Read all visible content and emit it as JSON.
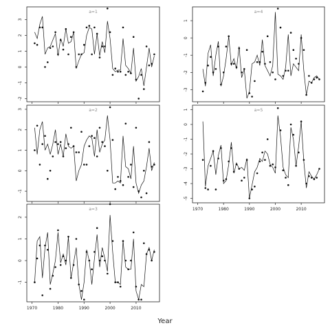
{
  "chart_data": {
    "type": "line",
    "xlabel": "Year",
    "ylabel": "",
    "xlim": [
      1968,
      2019
    ],
    "x_ticks": [
      1970,
      1980,
      1990,
      2000,
      2010
    ],
    "panels": [
      {
        "title": "a=1",
        "ylim": [
          -2.2,
          3.8
        ],
        "y_ticks": [
          -2,
          -1,
          0,
          1,
          2,
          3
        ],
        "series": [
          {
            "years": [
              1971,
              1972,
              1973,
              1974,
              1975,
              1976,
              1977,
              1978,
              1979,
              1980,
              1981,
              1982,
              1983,
              1984,
              1985,
              1986,
              1987,
              1988,
              1989,
              1990,
              1991,
              1992,
              1993,
              1994,
              1995,
              1996,
              1997,
              1998,
              1999,
              2000,
              2001,
              2002,
              2003,
              2004,
              2005,
              2006,
              2007,
              2008,
              2009,
              2010,
              2011,
              2012,
              2013,
              2014,
              2015,
              2016,
              2017
            ],
            "line": [
              2.2,
              1.8,
              2.7,
              3.2,
              0.8,
              1.2,
              1.3,
              1.7,
              2.1,
              0.7,
              1.8,
              1.3,
              2.4,
              1.5,
              1.6,
              2.2,
              -0.1,
              0.4,
              0.8,
              0.9,
              2.0,
              2.5,
              2.4,
              0.8,
              2.1,
              0.7,
              1.6,
              0.9,
              2.9,
              1.8,
              -0.1,
              -0.3,
              -0.2,
              -0.2,
              1.8,
              0.1,
              -0.1,
              -0.4,
              1.2,
              -0.9,
              -0.6,
              -0.1,
              -1.2,
              0.0,
              1.2,
              0.0,
              0.7
            ],
            "points": [
              1.5,
              1.4,
              2.5,
              2.5,
              0.0,
              0.3,
              1.2,
              1.3,
              2.2,
              0.8,
              1.7,
              1.1,
              2.4,
              0.8,
              1.9,
              2.2,
              0.0,
              0.8,
              0.8,
              1.4,
              2.5,
              2.6,
              0.8,
              2.5,
              2.1,
              0.6,
              1.3,
              1.3,
              3.7,
              2.2,
              -0.5,
              -0.1,
              -0.3,
              -0.3,
              2.5,
              -0.5,
              -0.3,
              -0.4,
              1.9,
              -0.8,
              -2.0,
              -0.5,
              -1.4,
              1.3,
              0.1,
              0.2,
              0.8
            ]
          }
        ]
      },
      {
        "title": "a=2",
        "ylim": [
          -1.5,
          3.2
        ],
        "y_ticks": [
          -1,
          0,
          1,
          2,
          3
        ],
        "series": [
          {
            "years": [
              1971,
              1972,
              1973,
              1974,
              1975,
              1976,
              1977,
              1978,
              1979,
              1980,
              1981,
              1982,
              1983,
              1984,
              1985,
              1986,
              1987,
              1988,
              1989,
              1990,
              1991,
              1992,
              1993,
              1994,
              1995,
              1996,
              1997,
              1998,
              1999,
              2000,
              2001,
              2002,
              2003,
              2004,
              2005,
              2006,
              2007,
              2008,
              2009,
              2010,
              2011,
              2012,
              2013,
              2014,
              2015,
              2016,
              2017
            ],
            "line": [
              2.1,
              0.8,
              2.0,
              2.4,
              1.0,
              1.3,
              0.8,
              1.3,
              2.0,
              0.8,
              1.3,
              0.7,
              1.8,
              1.2,
              1.1,
              1.2,
              -0.5,
              0.0,
              0.3,
              1.2,
              1.5,
              1.7,
              1.6,
              0.7,
              2.0,
              0.9,
              1.3,
              1.5,
              2.7,
              1.5,
              -0.6,
              -0.6,
              -0.5,
              -0.6,
              1.7,
              0.2,
              0.1,
              -0.4,
              1.2,
              -0.6,
              -1.1,
              -0.7,
              -0.5,
              0.2,
              1.1,
              0.0,
              0.4
            ],
            "points": [
              1.0,
              2.2,
              0.3,
              1.3,
              1.7,
              -0.4,
              0.0,
              0.7,
              1.4,
              1.3,
              1.4,
              0.7,
              1.1,
              1.3,
              2.1,
              1.2,
              0.9,
              0.9,
              1.9,
              0.3,
              0.3,
              1.2,
              1.7,
              1.6,
              0.7,
              2.1,
              1.4,
              1.2,
              0.0,
              3.1,
              1.5,
              -0.9,
              -0.3,
              -0.5,
              -0.7,
              2.3,
              -0.3,
              0.3,
              -0.8,
              2.1,
              -1.0,
              -1.3,
              0.0,
              -1.1,
              1.4,
              0.2,
              0.3
            ]
          }
        ]
      },
      {
        "title": "a=3",
        "ylim": [
          -1.9,
          2.6
        ],
        "y_ticks": [
          -1,
          0,
          1,
          2
        ],
        "series": [
          {
            "years": [
              1971,
              1972,
              1973,
              1974,
              1975,
              1976,
              1977,
              1978,
              1979,
              1980,
              1981,
              1982,
              1983,
              1984,
              1985,
              1986,
              1987,
              1988,
              1989,
              1990,
              1991,
              1992,
              1993,
              1994,
              1995,
              1996,
              1997,
              1998,
              1999,
              2000,
              2001,
              2002,
              2003,
              2004,
              2005,
              2006,
              2007,
              2008,
              2009,
              2010,
              2011,
              2012,
              2013,
              2014,
              2015,
              2016,
              2017
            ],
            "line": [
              -1.0,
              0.9,
              1.1,
              -0.8,
              0.6,
              1.3,
              -1.1,
              -0.6,
              0.0,
              1.3,
              -0.1,
              0.3,
              -0.2,
              1.1,
              -0.8,
              -0.1,
              0.6,
              -1.1,
              -1.8,
              -1.0,
              0.5,
              0.0,
              -1.1,
              0.1,
              1.2,
              -0.3,
              0.6,
              0.1,
              -0.5,
              2.1,
              0.4,
              -1.0,
              -1.0,
              -1.1,
              0.9,
              -0.3,
              -0.4,
              -0.4,
              1.0,
              -1.4,
              -1.8,
              -1.1,
              -1.2,
              0.3,
              0.6,
              0.0,
              0.5
            ],
            "points": [
              -1.0,
              0.1,
              0.7,
              -1.6,
              0.7,
              0.5,
              -1.3,
              -0.7,
              -0.3,
              1.4,
              -0.2,
              0.2,
              0.0,
              1.1,
              -0.8,
              -0.2,
              1.0,
              -1.1,
              -1.4,
              -1.8,
              0.4,
              0.0,
              -0.4,
              0.4,
              1.5,
              0.0,
              0.2,
              0.0,
              -0.6,
              2.6,
              0.9,
              -1.0,
              -1.0,
              -1.2,
              0.9,
              0.0,
              -0.4,
              0.0,
              1.3,
              -1.2,
              -1.8,
              -1.8,
              0.8,
              0.3,
              0.5,
              0.0,
              0.4
            ]
          }
        ]
      },
      {
        "title": "a=4",
        "ylim": [
          -3.7,
          1.8
        ],
        "y_ticks": [
          -3,
          -2,
          -1,
          0,
          1
        ],
        "series": [
          {
            "years": [
              1972,
              1973,
              1974,
              1975,
              1976,
              1977,
              1978,
              1979,
              1980,
              1981,
              1982,
              1983,
              1984,
              1985,
              1986,
              1987,
              1988,
              1989,
              1990,
              1991,
              1992,
              1993,
              1994,
              1995,
              1996,
              1997,
              1998,
              1999,
              2000,
              2001,
              2002,
              2003,
              2004,
              2005,
              2006,
              2007,
              2008,
              2009,
              2010,
              2011,
              2012,
              2013,
              2014,
              2015,
              2016,
              2017
            ],
            "line": [
              -1.8,
              -2.8,
              -0.9,
              -0.4,
              -2.2,
              -1.0,
              -0.2,
              -2.8,
              -2.2,
              -1.2,
              0.1,
              -1.6,
              -1.2,
              -1.8,
              -0.5,
              -2.3,
              -1.8,
              -3.5,
              -3.1,
              -1.5,
              -1.4,
              -1.0,
              -1.6,
              -0.1,
              -1.6,
              -1.9,
              -2.2,
              -1.6,
              1.5,
              -2.1,
              -2.2,
              -2.4,
              -1.7,
              0.2,
              -2.2,
              -1.5,
              -1.7,
              -1.9,
              0.2,
              -1.9,
              -3.3,
              -2.5,
              -2.6,
              -2.3,
              -2.2,
              -2.4
            ],
            "points": [
              -3.1,
              -2.6,
              -1.6,
              -1.1,
              -2.0,
              -1.8,
              -0.5,
              -2.7,
              -2.0,
              -0.5,
              0.1,
              -1.5,
              -1.5,
              -1.7,
              -0.6,
              -2.0,
              -1.8,
              -0.7,
              -3.2,
              -3.4,
              -2.5,
              -1.4,
              -1.4,
              -0.8,
              -1.5,
              0.1,
              -1.4,
              -2.0,
              -2.4,
              1.7,
              0.6,
              -2.2,
              -1.9,
              -1.9,
              0.3,
              -0.7,
              -1.2,
              -1.5,
              0.0,
              -0.7,
              -3.3,
              -2.2,
              -2.6,
              -2.4,
              -2.3,
              -2.4
            ]
          }
        ]
      },
      {
        "title": "a=5",
        "ylim": [
          -5.3,
          1.3
        ],
        "y_ticks": [
          -5,
          -4,
          -3,
          -2,
          -1,
          0,
          1
        ],
        "series": [
          {
            "years": [
              1972,
              1973,
              1974,
              1975,
              1976,
              1977,
              1978,
              1979,
              1980,
              1981,
              1982,
              1983,
              1984,
              1985,
              1986,
              1987,
              1988,
              1989,
              1990,
              1991,
              1992,
              1993,
              1994,
              1995,
              1996,
              1997,
              1998,
              1999,
              2000,
              2001,
              2002,
              2003,
              2004,
              2005,
              2006,
              2007,
              2008,
              2009,
              2010,
              2011,
              2012,
              2013,
              2014,
              2015,
              2016,
              2017
            ],
            "line": [
              0.2,
              -4.2,
              -2.8,
              -2.3,
              -1.8,
              -3.4,
              -2.1,
              -1.4,
              -4.0,
              -3.8,
              -2.7,
              -1.2,
              -3.3,
              -2.6,
              -3.0,
              -2.9,
              -3.1,
              -2.3,
              -5.0,
              -4.1,
              -3.2,
              -2.9,
              -2.3,
              -2.5,
              -1.8,
              -2.0,
              -2.7,
              -2.9,
              -3.3,
              0.6,
              -0.8,
              -2.9,
              -3.4,
              -3.6,
              -0.2,
              -1.0,
              -2.8,
              -1.5,
              0.2,
              -2.5,
              -4.3,
              -3.2,
              -3.5,
              -3.7,
              -3.4,
              -3.0
            ],
            "points": [
              -2.4,
              -4.3,
              -4.4,
              -2.8,
              -1.8,
              -4.4,
              -2.3,
              -1.6,
              -3.8,
              -3.7,
              -2.5,
              -1.6,
              -3.2,
              -2.7,
              -3.0,
              -3.8,
              -3.6,
              -2.4,
              -5.0,
              -4.4,
              -4.2,
              -3.3,
              -2.5,
              -1.9,
              -2.4,
              -1.0,
              -2.8,
              -2.7,
              -2.9,
              1.1,
              -0.4,
              -3.1,
              -3.6,
              -4.1,
              0.0,
              -0.7,
              -2.8,
              -1.9,
              0.2,
              -2.4,
              -4.0,
              -3.5,
              -3.6,
              -3.7,
              -3.6,
              -3.0
            ]
          }
        ]
      }
    ]
  }
}
